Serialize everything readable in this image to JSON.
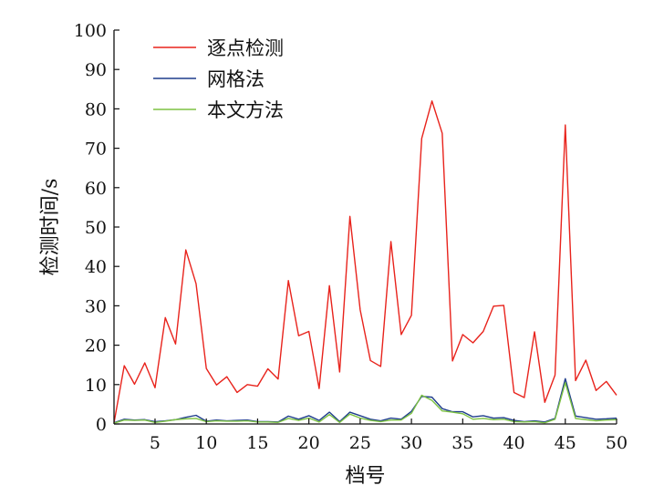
{
  "chart_data": {
    "type": "line",
    "title": "",
    "xlabel": "档号",
    "ylabel": "检测时间/s",
    "xlim": [
      1,
      50
    ],
    "ylim": [
      0,
      100
    ],
    "xticks": [
      5,
      10,
      15,
      20,
      25,
      30,
      35,
      40,
      45,
      50
    ],
    "yticks": [
      0,
      10,
      20,
      30,
      40,
      50,
      60,
      70,
      80,
      90,
      100
    ],
    "grid": false,
    "legend_position": "top-left",
    "x": [
      1,
      2,
      3,
      4,
      5,
      6,
      7,
      8,
      9,
      10,
      11,
      12,
      13,
      14,
      15,
      16,
      17,
      18,
      19,
      20,
      21,
      22,
      23,
      24,
      25,
      26,
      27,
      28,
      29,
      30,
      31,
      32,
      33,
      34,
      35,
      36,
      37,
      38,
      39,
      40,
      41,
      42,
      43,
      44,
      45,
      46,
      47,
      48,
      49,
      50
    ],
    "series": [
      {
        "name": "逐点检测",
        "color": "#e8231c",
        "values": [
          0.3,
          14.8,
          10.1,
          15.5,
          9.2,
          27.0,
          20.3,
          44.2,
          35.6,
          14.1,
          9.9,
          12.0,
          8.0,
          10.0,
          9.6,
          14.0,
          11.4,
          36.4,
          22.4,
          23.5,
          9.0,
          35.1,
          13.2,
          52.7,
          29.0,
          16.1,
          14.6,
          46.3,
          22.7,
          27.6,
          72.5,
          82.0,
          73.8,
          16.0,
          22.7,
          20.6,
          23.5,
          29.9,
          30.1,
          8.0,
          6.7,
          23.4,
          5.5,
          12.4,
          75.9,
          11.0,
          16.2,
          8.5,
          10.8,
          7.3
        ]
      },
      {
        "name": "网格法",
        "color": "#1f3d8c",
        "values": [
          0.3,
          1.2,
          1.0,
          1.1,
          0.6,
          0.8,
          1.1,
          1.7,
          2.2,
          0.7,
          1.0,
          0.8,
          0.9,
          1.0,
          0.6,
          0.6,
          0.5,
          2.0,
          1.2,
          2.1,
          0.9,
          3.0,
          0.6,
          3.0,
          2.1,
          1.2,
          0.8,
          1.5,
          1.2,
          3.2,
          7.0,
          6.8,
          3.9,
          3.1,
          3.1,
          1.8,
          2.1,
          1.5,
          1.6,
          0.9,
          0.6,
          0.8,
          0.5,
          1.4,
          11.5,
          2.0,
          1.6,
          1.2,
          1.3,
          1.5
        ]
      },
      {
        "name": "本文方法",
        "color": "#7dc242",
        "values": [
          0.2,
          1.0,
          0.9,
          1.0,
          0.4,
          0.7,
          1.1,
          1.3,
          1.4,
          0.6,
          0.8,
          0.7,
          0.7,
          0.8,
          0.5,
          0.5,
          0.4,
          1.4,
          0.9,
          1.5,
          0.5,
          2.4,
          0.4,
          2.5,
          1.5,
          0.9,
          0.6,
          1.0,
          1.0,
          2.7,
          7.3,
          6.0,
          3.3,
          3.0,
          2.6,
          1.2,
          1.4,
          1.1,
          1.2,
          0.6,
          0.5,
          0.6,
          0.3,
          1.2,
          10.5,
          1.4,
          1.1,
          0.8,
          1.0,
          1.1
        ]
      }
    ]
  }
}
